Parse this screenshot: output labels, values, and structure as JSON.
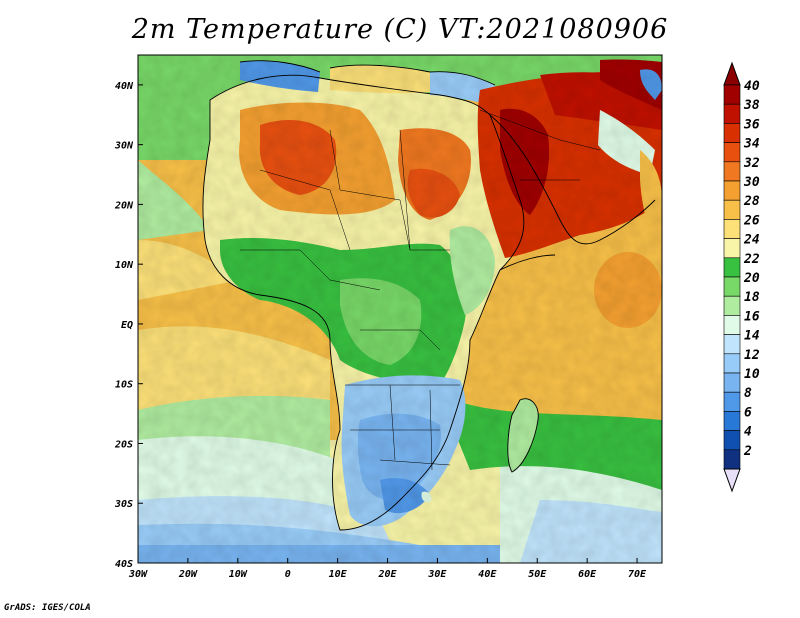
{
  "title": "2m Temperature (C) VT:2021080906",
  "credit": "GrADS: IGES/COLA",
  "map": {
    "variable": "2m Temperature",
    "units": "C",
    "valid_time": "2021080906",
    "lon_range": [
      -30,
      75
    ],
    "lat_range": [
      -40,
      45
    ],
    "lon_ticks": [
      "30W",
      "20W",
      "10W",
      "0",
      "10E",
      "20E",
      "30E",
      "40E",
      "50E",
      "60E",
      "70E"
    ],
    "lat_ticks": [
      "40N",
      "30N",
      "20N",
      "10N",
      "EQ",
      "10S",
      "20S",
      "30S",
      "40S"
    ]
  },
  "colorbar": {
    "labels": [
      "40",
      "38",
      "36",
      "34",
      "32",
      "30",
      "28",
      "26",
      "24",
      "22",
      "20",
      "18",
      "16",
      "14",
      "12",
      "10",
      "8",
      "6",
      "4",
      "2"
    ],
    "colors": [
      "#a00000",
      "#c01000",
      "#d83000",
      "#e85010",
      "#f07820",
      "#f4a030",
      "#f8c048",
      "#fce078",
      "#f8f4a8",
      "#38c040",
      "#78d868",
      "#b0eca0",
      "#e0fce8",
      "#c0e4fc",
      "#98ccf8",
      "#78b4f0",
      "#5098e8",
      "#2878d8",
      "#1050b0",
      "#103080"
    ],
    "top_arrow_color": "#8b0000",
    "bottom_arrow_color": "#e8e0f8"
  }
}
